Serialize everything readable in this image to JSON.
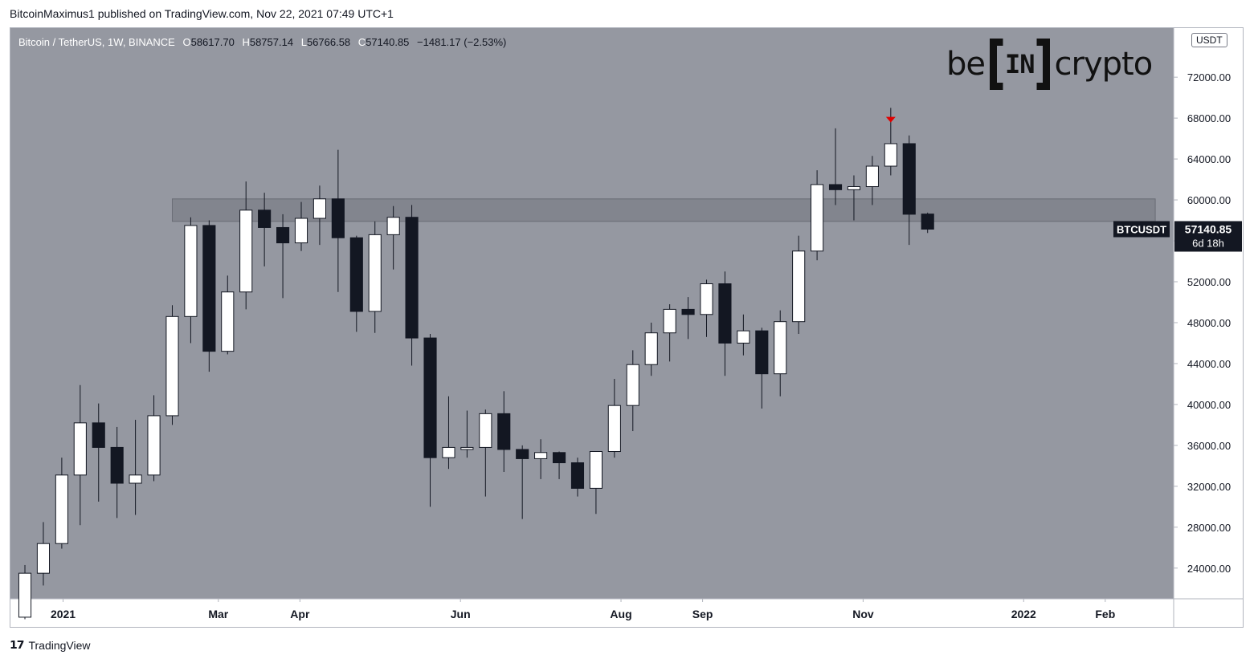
{
  "header": {
    "published": "BitcoinMaximus1 published on TradingView.com, Nov 22, 2021 07:49 UTC+1"
  },
  "legend": {
    "symbol": "Bitcoin / TetherUS, 1W, BINANCE",
    "o_label": "O",
    "o": "58617.70",
    "h_label": "H",
    "h": "58757.14",
    "l_label": "L",
    "l": "56766.58",
    "c_label": "C",
    "c": "57140.85",
    "change": "−1481.17 (−2.53%)"
  },
  "logo": {
    "left": "be",
    "middle": "IN",
    "right": "crypto"
  },
  "currency_button": "USDT",
  "footer": {
    "brand": "TradingView"
  },
  "colors": {
    "background": "#9598a1",
    "up": "#ffffff",
    "down": "#131722",
    "zone": "#7c7f88",
    "marker": "#e00000"
  },
  "chart_data": {
    "type": "candlestick",
    "price_label": {
      "symbol": "BTCUSDT",
      "price": "57140.85",
      "countdown": "6d 18h",
      "value": 57140.85
    },
    "y_axis": {
      "ticks": [
        24000,
        28000,
        32000,
        36000,
        40000,
        44000,
        48000,
        52000,
        56000,
        60000,
        64000,
        68000,
        72000
      ],
      "tick_labels": [
        "24000.00",
        "28000.00",
        "32000.00",
        "36000.00",
        "40000.00",
        "44000.00",
        "48000.00",
        "52000.00",
        "56000.00",
        "60000.00",
        "64000.00",
        "68000.00",
        "72000.00"
      ],
      "ylim": [
        21000,
        76800
      ]
    },
    "x_axis": {
      "labels": [
        {
          "label": "2021",
          "date": "2021-01-01"
        },
        {
          "label": "Mar",
          "date": "2021-03-01"
        },
        {
          "label": "Apr",
          "date": "2021-04-01"
        },
        {
          "label": "Jun",
          "date": "2021-06-01"
        },
        {
          "label": "Aug",
          "date": "2021-08-01"
        },
        {
          "label": "Sep",
          "date": "2021-09-01"
        },
        {
          "label": "Nov",
          "date": "2021-11-01"
        },
        {
          "label": "2022",
          "date": "2022-01-01"
        },
        {
          "label": "Feb",
          "date": "2022-02-01"
        }
      ],
      "xlim": [
        "2020-12-12",
        "2022-02-27"
      ]
    },
    "resistance_zone": {
      "from": "2021-02-15",
      "to": "2022-02-20",
      "low": 57900,
      "high": 60100
    },
    "marker": {
      "type": "triangle-down",
      "date": "2021-11-08",
      "price": 67800
    },
    "candles": [
      {
        "date": "2020-12-14",
        "open": 19200,
        "high": 24300,
        "low": 19000,
        "close": 23500
      },
      {
        "date": "2020-12-21",
        "open": 23500,
        "high": 28500,
        "low": 22300,
        "close": 26400
      },
      {
        "date": "2020-12-28",
        "open": 26400,
        "high": 34800,
        "low": 25900,
        "close": 33100
      },
      {
        "date": "2021-01-04",
        "open": 33100,
        "high": 41900,
        "low": 28200,
        "close": 38200
      },
      {
        "date": "2021-01-11",
        "open": 38200,
        "high": 40100,
        "low": 30500,
        "close": 35800
      },
      {
        "date": "2021-01-18",
        "open": 35800,
        "high": 37800,
        "low": 28900,
        "close": 32300
      },
      {
        "date": "2021-01-25",
        "open": 32300,
        "high": 38500,
        "low": 29200,
        "close": 33100
      },
      {
        "date": "2021-02-01",
        "open": 33100,
        "high": 40900,
        "low": 32500,
        "close": 38900
      },
      {
        "date": "2021-02-08",
        "open": 38900,
        "high": 49700,
        "low": 38000,
        "close": 48600
      },
      {
        "date": "2021-02-15",
        "open": 48600,
        "high": 58300,
        "low": 46000,
        "close": 57500
      },
      {
        "date": "2021-02-22",
        "open": 57500,
        "high": 58000,
        "low": 43200,
        "close": 45200
      },
      {
        "date": "2021-03-01",
        "open": 45200,
        "high": 52600,
        "low": 44900,
        "close": 51000
      },
      {
        "date": "2021-03-08",
        "open": 51000,
        "high": 61800,
        "low": 49300,
        "close": 59000
      },
      {
        "date": "2021-03-15",
        "open": 59000,
        "high": 60700,
        "low": 53500,
        "close": 57300
      },
      {
        "date": "2021-03-22",
        "open": 57300,
        "high": 58600,
        "low": 50400,
        "close": 55800
      },
      {
        "date": "2021-03-29",
        "open": 55800,
        "high": 59800,
        "low": 55000,
        "close": 58200
      },
      {
        "date": "2021-04-05",
        "open": 58200,
        "high": 61400,
        "low": 55600,
        "close": 60100
      },
      {
        "date": "2021-04-12",
        "open": 60100,
        "high": 64900,
        "low": 51000,
        "close": 56300
      },
      {
        "date": "2021-04-19",
        "open": 56300,
        "high": 56500,
        "low": 47100,
        "close": 49100
      },
      {
        "date": "2021-04-26",
        "open": 49100,
        "high": 57900,
        "low": 47000,
        "close": 56600
      },
      {
        "date": "2021-05-03",
        "open": 56600,
        "high": 59400,
        "low": 53200,
        "close": 58300
      },
      {
        "date": "2021-05-10",
        "open": 58300,
        "high": 59500,
        "low": 43800,
        "close": 46500
      },
      {
        "date": "2021-05-17",
        "open": 46500,
        "high": 46900,
        "low": 30000,
        "close": 34800
      },
      {
        "date": "2021-05-24",
        "open": 34800,
        "high": 40800,
        "low": 33700,
        "close": 35800
      },
      {
        "date": "2021-05-31",
        "open": 35600,
        "high": 39400,
        "low": 34800,
        "close": 35800
      },
      {
        "date": "2021-06-07",
        "open": 35800,
        "high": 39500,
        "low": 31000,
        "close": 39100
      },
      {
        "date": "2021-06-14",
        "open": 39100,
        "high": 41300,
        "low": 33400,
        "close": 35600
      },
      {
        "date": "2021-06-21",
        "open": 35600,
        "high": 36000,
        "low": 28800,
        "close": 34700
      },
      {
        "date": "2021-06-28",
        "open": 34700,
        "high": 36600,
        "low": 32700,
        "close": 35300
      },
      {
        "date": "2021-07-05",
        "open": 35300,
        "high": 35400,
        "low": 32700,
        "close": 34300
      },
      {
        "date": "2021-07-12",
        "open": 34300,
        "high": 34800,
        "low": 31000,
        "close": 31800
      },
      {
        "date": "2021-07-19",
        "open": 31800,
        "high": 35400,
        "low": 29300,
        "close": 35400
      },
      {
        "date": "2021-07-26",
        "open": 35400,
        "high": 42500,
        "low": 34800,
        "close": 39900
      },
      {
        "date": "2021-08-02",
        "open": 39900,
        "high": 45300,
        "low": 37400,
        "close": 43900
      },
      {
        "date": "2021-08-09",
        "open": 43900,
        "high": 48000,
        "low": 42800,
        "close": 47000
      },
      {
        "date": "2021-08-16",
        "open": 47000,
        "high": 49800,
        "low": 44200,
        "close": 49300
      },
      {
        "date": "2021-08-23",
        "open": 49300,
        "high": 50500,
        "low": 46400,
        "close": 48800
      },
      {
        "date": "2021-08-30",
        "open": 48800,
        "high": 52200,
        "low": 46600,
        "close": 51800
      },
      {
        "date": "2021-09-06",
        "open": 51800,
        "high": 53000,
        "low": 42800,
        "close": 46000
      },
      {
        "date": "2021-09-13",
        "open": 46000,
        "high": 48800,
        "low": 44800,
        "close": 47200
      },
      {
        "date": "2021-09-20",
        "open": 47200,
        "high": 47500,
        "low": 39600,
        "close": 43000
      },
      {
        "date": "2021-09-27",
        "open": 43000,
        "high": 49200,
        "low": 40800,
        "close": 48100
      },
      {
        "date": "2021-10-04",
        "open": 48100,
        "high": 56500,
        "low": 46900,
        "close": 55000
      },
      {
        "date": "2021-10-11",
        "open": 55000,
        "high": 62900,
        "low": 54100,
        "close": 61500
      },
      {
        "date": "2021-10-18",
        "open": 61500,
        "high": 67000,
        "low": 59500,
        "close": 61000
      },
      {
        "date": "2021-10-25",
        "open": 61000,
        "high": 62400,
        "low": 58000,
        "close": 61300
      },
      {
        "date": "2021-11-01",
        "open": 61300,
        "high": 64300,
        "low": 59500,
        "close": 63300
      },
      {
        "date": "2021-11-08",
        "open": 63300,
        "high": 69000,
        "low": 62400,
        "close": 65500
      },
      {
        "date": "2021-11-15",
        "open": 65500,
        "high": 66300,
        "low": 55600,
        "close": 58600
      },
      {
        "date": "2021-11-22",
        "open": 58617.7,
        "high": 58757.14,
        "low": 56766.58,
        "close": 57140.85
      }
    ]
  }
}
